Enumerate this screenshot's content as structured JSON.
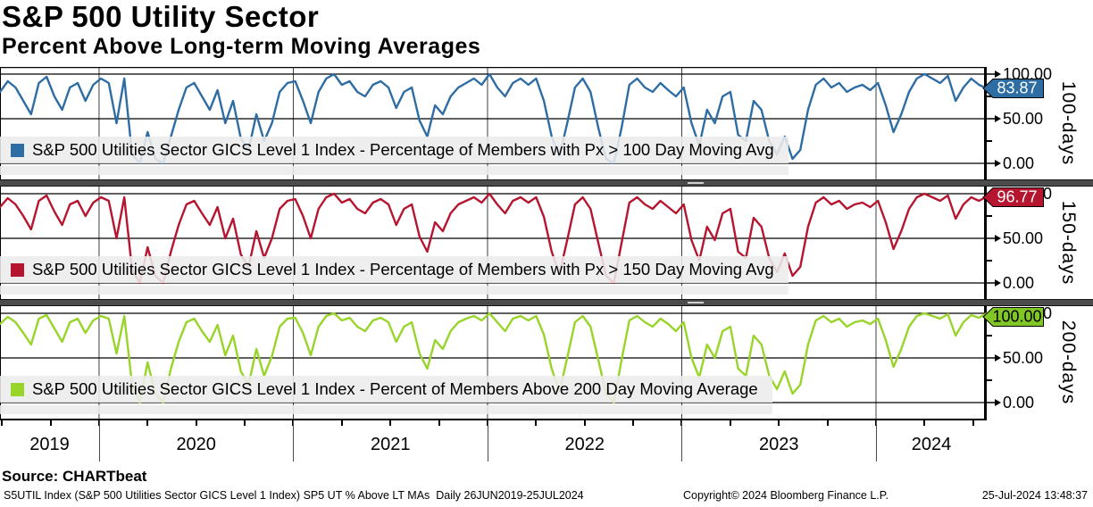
{
  "header": {
    "title": "S&P 500 Utility Sector",
    "subtitle": "Percent Above Long-term Moving Averages"
  },
  "axis": {
    "x_range": [
      2019.49,
      2024.57
    ],
    "year_labels": [
      "2019",
      "2020",
      "2021",
      "2022",
      "2023",
      "2024"
    ],
    "gridline_years": [
      2020,
      2021,
      2022,
      2023,
      2024
    ],
    "y_ticks": [
      {
        "v": 100,
        "label": "100.00"
      },
      {
        "v": 50,
        "label": "50.00"
      },
      {
        "v": 0,
        "label": "0.00"
      }
    ],
    "y_minor": [
      75,
      25
    ]
  },
  "chart_data": {
    "type": "line",
    "title": "S&P 500 Utility Sector - Percent Above Long-term Moving Averages",
    "x_start": 2019.49,
    "x_step": 0.04,
    "ylim": [
      0,
      100
    ],
    "grid": "on",
    "panels": [
      {
        "name": "100-days",
        "legend": "S&P 500 Utilities Sector GICS Level 1 Index - Percentage of Members with Px > 100 Day Moving Avg",
        "color": "#2E6DA4",
        "badge_color": "#2E6DA4",
        "badge_text_color": "#FFFFFF",
        "last_value": "83.87",
        "last_v": 83.87,
        "values": [
          80,
          92,
          85,
          70,
          55,
          90,
          97,
          75,
          60,
          85,
          90,
          70,
          88,
          95,
          90,
          45,
          95,
          10,
          0,
          35,
          5,
          0,
          30,
          60,
          85,
          90,
          75,
          60,
          82,
          45,
          70,
          28,
          15,
          55,
          25,
          45,
          80,
          90,
          92,
          70,
          45,
          80,
          95,
          100,
          88,
          92,
          80,
          75,
          88,
          92,
          85,
          62,
          80,
          85,
          48,
          30,
          65,
          55,
          75,
          85,
          90,
          95,
          88,
          100,
          85,
          75,
          90,
          95,
          88,
          95,
          70,
          30,
          8,
          45,
          85,
          95,
          80,
          40,
          5,
          0,
          40,
          88,
          95,
          85,
          80,
          90,
          82,
          75,
          85,
          45,
          20,
          60,
          45,
          75,
          80,
          32,
          25,
          70,
          60,
          25,
          10,
          30,
          5,
          15,
          60,
          88,
          95,
          85,
          90,
          80,
          85,
          88,
          82,
          90,
          65,
          35,
          55,
          80,
          95,
          100,
          95,
          90,
          98,
          70,
          85,
          95,
          88,
          83.87
        ]
      },
      {
        "name": "150-days",
        "legend": "S&P 500 Utilities Sector GICS Level 1 Index - Percentage of Members with Px > 150 Day Moving Avg",
        "color": "#B6152F",
        "badge_color": "#B6152F",
        "badge_text_color": "#FFFFFF",
        "last_value": "96.77",
        "last_v": 96.77,
        "values": [
          85,
          95,
          88,
          75,
          60,
          92,
          98,
          80,
          65,
          88,
          92,
          75,
          90,
          96,
          92,
          50,
          96,
          15,
          0,
          40,
          8,
          0,
          35,
          65,
          88,
          92,
          78,
          65,
          85,
          50,
          72,
          32,
          18,
          58,
          28,
          50,
          83,
          92,
          94,
          75,
          50,
          83,
          96,
          100,
          90,
          94,
          83,
          78,
          90,
          94,
          88,
          65,
          83,
          88,
          52,
          35,
          68,
          58,
          78,
          88,
          92,
          96,
          90,
          100,
          88,
          78,
          92,
          96,
          90,
          96,
          74,
          35,
          10,
          48,
          88,
          96,
          83,
          45,
          8,
          0,
          45,
          90,
          96,
          88,
          83,
          92,
          85,
          78,
          88,
          48,
          25,
          63,
          48,
          78,
          83,
          35,
          28,
          73,
          63,
          28,
          12,
          33,
          8,
          18,
          63,
          90,
          96,
          88,
          92,
          83,
          88,
          90,
          85,
          92,
          68,
          38,
          58,
          83,
          96,
          100,
          96,
          92,
          98,
          72,
          88,
          96,
          92,
          96.77
        ]
      },
      {
        "name": "200-days",
        "legend": "S&P 500 Utilities Sector GICS Level 1 Index - Percent of Members Above 200 Day Moving Average",
        "color": "#98D42A",
        "badge_color": "#80C626",
        "badge_text_color": "#000000",
        "last_value": "100.00",
        "last_v": 100,
        "values": [
          88,
          96,
          90,
          78,
          65,
          94,
          98,
          83,
          68,
          90,
          94,
          78,
          92,
          97,
          94,
          55,
          97,
          20,
          0,
          45,
          10,
          0,
          38,
          68,
          90,
          94,
          80,
          68,
          87,
          53,
          75,
          35,
          20,
          60,
          30,
          52,
          85,
          94,
          95,
          78,
          53,
          85,
          97,
          100,
          92,
          95,
          85,
          80,
          92,
          95,
          90,
          68,
          85,
          90,
          55,
          38,
          70,
          60,
          80,
          90,
          94,
          97,
          92,
          100,
          90,
          80,
          94,
          97,
          92,
          97,
          76,
          38,
          12,
          50,
          90,
          97,
          85,
          48,
          10,
          0,
          48,
          92,
          97,
          90,
          85,
          94,
          88,
          80,
          90,
          50,
          28,
          65,
          50,
          80,
          85,
          38,
          30,
          75,
          65,
          30,
          15,
          35,
          10,
          20,
          65,
          92,
          97,
          90,
          94,
          85,
          90,
          92,
          88,
          94,
          70,
          40,
          60,
          85,
          97,
          100,
          97,
          94,
          99,
          75,
          90,
          98,
          95,
          100
        ]
      }
    ]
  },
  "footer": {
    "source": "Source: CHARTbeat",
    "description": "S5UTIL Index (S&P 500 Utilities Sector GICS Level 1 Index) SP5 UT % Above LT MAs  Daily 26JUN2019-25JUL2024",
    "copyright": "Copyright© 2024 Bloomberg Finance L.P.",
    "datetime": "25-Jul-2024 13:48:37"
  }
}
